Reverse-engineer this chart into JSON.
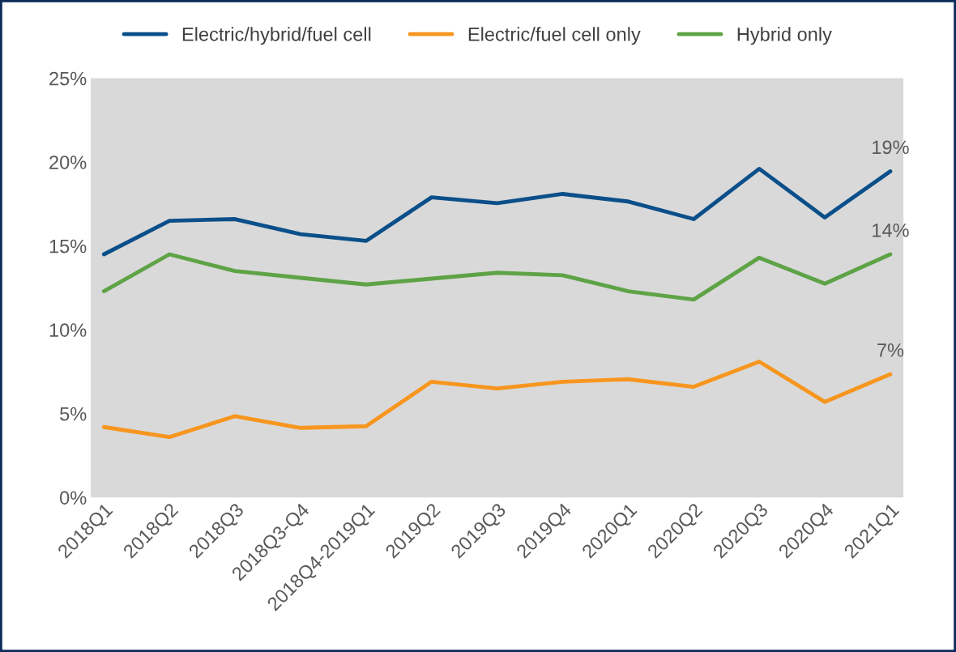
{
  "chart_data": {
    "type": "line",
    "categories": [
      "2018Q1",
      "2018Q2",
      "2018Q3",
      "2018Q3-Q4",
      "2018Q4-2019Q1",
      "2019Q2",
      "2019Q3",
      "2019Q4",
      "2020Q1",
      "2020Q2",
      "2020Q3",
      "2020Q4",
      "2021Q1"
    ],
    "series": [
      {
        "name": "Electric/hybrid/fuel cell",
        "color": "#0b4f8a",
        "values": [
          14.5,
          16.5,
          16.6,
          15.7,
          15.3,
          17.9,
          17.55,
          18.1,
          17.65,
          16.6,
          19.6,
          16.7,
          19.45
        ]
      },
      {
        "name": "Electric/fuel cell only",
        "color": "#f7961e",
        "values": [
          4.2,
          3.6,
          4.85,
          4.15,
          4.25,
          6.9,
          6.5,
          6.9,
          7.05,
          6.6,
          8.1,
          5.7,
          7.35
        ]
      },
      {
        "name": "Hybrid only",
        "color": "#5ea346",
        "values": [
          12.3,
          14.5,
          13.5,
          13.1,
          12.7,
          13.05,
          13.4,
          13.25,
          12.3,
          11.8,
          14.3,
          12.75,
          14.5
        ]
      }
    ],
    "ylim": [
      0,
      25
    ],
    "yticks": [
      {
        "value": 0,
        "label": "0%"
      },
      {
        "value": 5,
        "label": "5%"
      },
      {
        "value": 10,
        "label": "10%"
      },
      {
        "value": 15,
        "label": "15%"
      },
      {
        "value": 20,
        "label": "20%"
      },
      {
        "value": 25,
        "label": "25%"
      }
    ],
    "annotations": [
      {
        "text": "19%",
        "x": "2021Q1",
        "y": 19.45
      },
      {
        "text": "14%",
        "x": "2021Q1",
        "y": 14.5
      },
      {
        "text": "7%",
        "x": "2021Q1",
        "y": 7.35
      }
    ],
    "grid": false,
    "legend": "top",
    "marker": "none",
    "line_style": "solid"
  }
}
